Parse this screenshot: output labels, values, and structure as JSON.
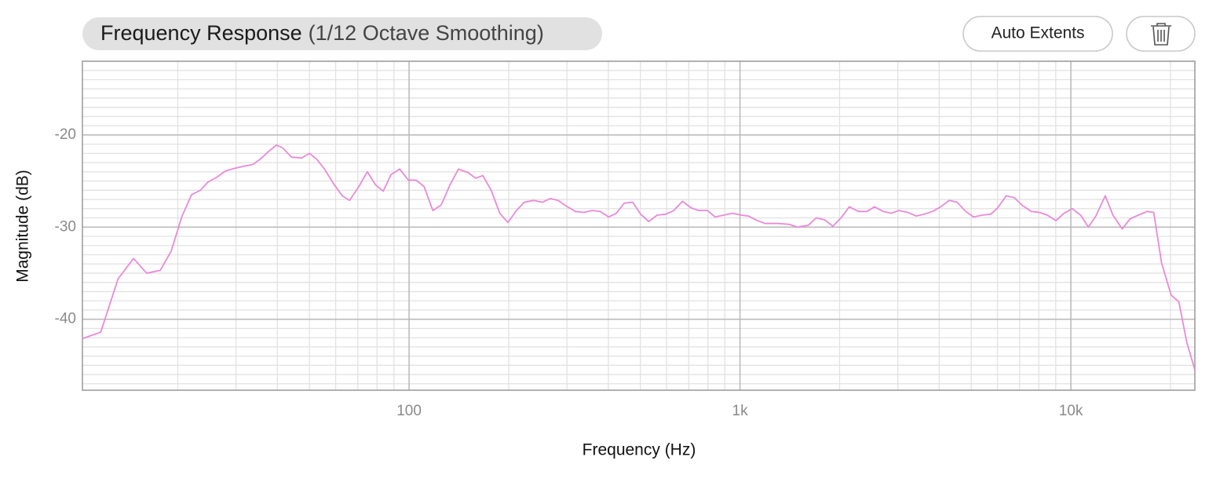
{
  "chart_data": {
    "type": "line",
    "title": "Frequency Response",
    "subtitle": "(1/12 Octave Smoothing)",
    "buttons": [
      "Auto Extents"
    ],
    "x_label": "Frequency (Hz)",
    "y_label": "Magnitude (dB)",
    "x_log": true,
    "grid": true,
    "color": "#e98ad8",
    "xlim": [
      10.3,
      23700
    ],
    "ylim": [
      -47.7,
      -12
    ],
    "xticks": [
      100,
      {
        "value": 1000,
        "label": "1k"
      },
      {
        "value": 10000,
        "label": "10k"
      }
    ],
    "yticks": [
      -20,
      -30,
      -40
    ],
    "x": [
      10.3,
      11.7,
      13.2,
      14.7,
      16.1,
      17.7,
      19.1,
      20.6,
      22.0,
      23.4,
      24.7,
      26.2,
      27.9,
      29.9,
      31.6,
      33.7,
      35.6,
      37.6,
      39.7,
      41.5,
      44.1,
      47.3,
      50.0,
      52.5,
      55.5,
      58.9,
      62.8,
      66.1,
      70.5,
      74.8,
      79.1,
      83.5,
      88.2,
      93.7,
      99.5,
      105,
      111,
      118,
      125,
      133,
      141,
      151,
      159,
      167,
      177,
      188,
      199,
      211,
      223,
      238,
      253,
      267,
      282,
      298,
      318,
      338,
      357,
      378,
      401,
      423,
      447,
      474,
      501,
      530,
      562,
      597,
      631,
      670,
      711,
      750,
      798,
      841,
      893,
      948,
      1010,
      1060,
      1130,
      1190,
      1300,
      1410,
      1490,
      1610,
      1700,
      1800,
      1910,
      2030,
      2140,
      2280,
      2420,
      2550,
      2710,
      2860,
      3020,
      3210,
      3410,
      3600,
      3820,
      4040,
      4290,
      4530,
      4810,
      5080,
      5400,
      5730,
      6010,
      6380,
      6740,
      7160,
      7600,
      8030,
      8490,
      9010,
      9530,
      10100,
      10700,
      11300,
      11900,
      12700,
      13400,
      14300,
      15100,
      16000,
      17000,
      17800,
      18800,
      20100,
      21200,
      22400,
      23700
    ],
    "values": [
      -42.1,
      -41.4,
      -35.6,
      -33.4,
      -35.0,
      -34.7,
      -32.6,
      -28.8,
      -26.5,
      -26.0,
      -25.1,
      -24.6,
      -23.9,
      -23.6,
      -23.4,
      -23.2,
      -22.6,
      -21.8,
      -21.1,
      -21.4,
      -22.4,
      -22.5,
      -22.0,
      -22.6,
      -23.7,
      -25.2,
      -26.6,
      -27.1,
      -25.6,
      -24.0,
      -25.4,
      -26.1,
      -24.3,
      -23.7,
      -24.9,
      -24.9,
      -25.6,
      -28.2,
      -27.6,
      -25.4,
      -23.7,
      -24.1,
      -24.7,
      -24.4,
      -26.0,
      -28.5,
      -29.5,
      -28.2,
      -27.3,
      -27.1,
      -27.3,
      -26.9,
      -27.1,
      -27.7,
      -28.3,
      -28.4,
      -28.2,
      -28.3,
      -28.9,
      -28.5,
      -27.4,
      -27.3,
      -28.6,
      -29.4,
      -28.7,
      -28.6,
      -28.2,
      -27.2,
      -27.9,
      -28.2,
      -28.2,
      -28.9,
      -28.7,
      -28.5,
      -28.7,
      -28.8,
      -29.3,
      -29.6,
      -29.6,
      -29.7,
      -30.0,
      -29.8,
      -29.0,
      -29.2,
      -29.9,
      -28.9,
      -27.8,
      -28.3,
      -28.3,
      -27.8,
      -28.3,
      -28.5,
      -28.2,
      -28.4,
      -28.8,
      -28.6,
      -28.3,
      -27.8,
      -27.1,
      -27.3,
      -28.3,
      -28.9,
      -28.7,
      -28.6,
      -27.9,
      -26.6,
      -26.8,
      -27.7,
      -28.3,
      -28.4,
      -28.7,
      -29.3,
      -28.5,
      -28.0,
      -28.7,
      -30.0,
      -28.8,
      -26.6,
      -28.7,
      -30.2,
      -29.1,
      -28.7,
      -28.3,
      -28.4,
      -33.9,
      -37.4,
      -38.1,
      -42.5,
      -45.5
    ]
  }
}
